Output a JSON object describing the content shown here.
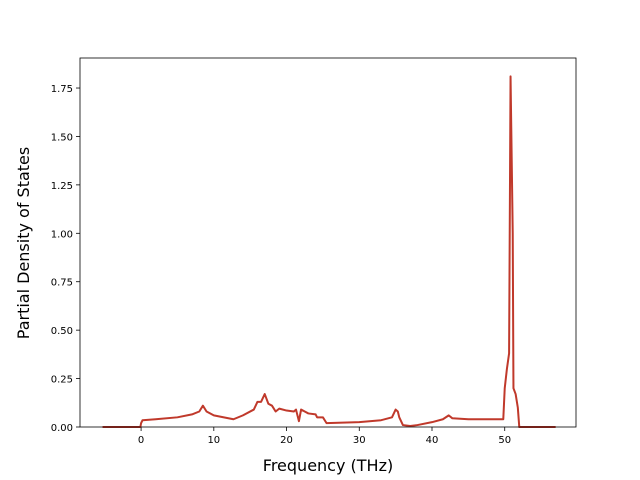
{
  "chart_data": {
    "type": "line",
    "x_label": "Frequency (THz)",
    "y_label": "Partial Density of States",
    "x": [
      -5.3,
      -0.1,
      0,
      0.2,
      2,
      5,
      7,
      8,
      8.5,
      9,
      10,
      12,
      12.7,
      14,
      15.5,
      16,
      16.5,
      17,
      17.5,
      18,
      18.5,
      19,
      20,
      21,
      21.3,
      21.7,
      22,
      22.5,
      23,
      24,
      24.2,
      25,
      25.5,
      30,
      33,
      34.5,
      35,
      35.3,
      35.5,
      36,
      37,
      38,
      40,
      41.5,
      42.3,
      42.8,
      45,
      49.8,
      50,
      50.3,
      50.6,
      50.8,
      51.1,
      51.2,
      51.5,
      51.8,
      52,
      57
    ],
    "series": [
      {
        "color": "#c0392b",
        "values": [
          0,
          0,
          0.02,
          0.035,
          0.04,
          0.05,
          0.065,
          0.08,
          0.11,
          0.08,
          0.06,
          0.045,
          0.04,
          0.06,
          0.09,
          0.13,
          0.13,
          0.17,
          0.12,
          0.11,
          0.08,
          0.095,
          0.085,
          0.08,
          0.09,
          0.03,
          0.09,
          0.08,
          0.07,
          0.065,
          0.05,
          0.05,
          0.02,
          0.025,
          0.035,
          0.05,
          0.09,
          0.08,
          0.05,
          0.01,
          0.005,
          0.01,
          0.025,
          0.04,
          0.06,
          0.045,
          0.04,
          0.04,
          0.2,
          0.3,
          0.38,
          1.81,
          1.0,
          0.2,
          0.17,
          0.1,
          0,
          0
        ]
      }
    ],
    "xlim": [
      -8.4,
      59.8
    ],
    "ylim": [
      0,
      1.905
    ],
    "xticks": [
      0,
      10,
      20,
      30,
      40,
      50
    ],
    "yticks": [
      {
        "value": 0,
        "label": "0.00"
      },
      {
        "value": 0.25,
        "label": "0.25"
      },
      {
        "value": 0.5,
        "label": "0.50"
      },
      {
        "value": 0.75,
        "label": "0.75"
      },
      {
        "value": 1,
        "label": "1.00"
      },
      {
        "value": 1.25,
        "label": "1.25"
      },
      {
        "value": 1.5,
        "label": "1.50"
      },
      {
        "value": 1.75,
        "label": "1.75"
      }
    ]
  }
}
